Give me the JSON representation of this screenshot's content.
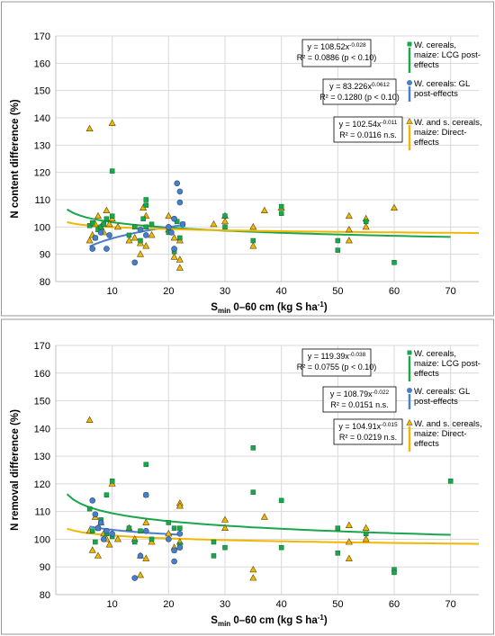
{
  "colors": {
    "lcg": "#1aa64b",
    "gl": "#4a7ec8",
    "direct": "#f2b705",
    "grid": "#d9d9d9",
    "frame": "#9a9a9a"
  },
  "chart_data": [
    {
      "type": "scatter",
      "ylabel": "N content difference (%)",
      "xlabel_main": "S",
      "xlabel_sub": "min",
      "xlabel_rest": " 0–60 cm (kg S ha",
      "xlabel_sup": "-1",
      "xlabel_close": ")",
      "xlim": [
        0,
        75
      ],
      "ylim": [
        80,
        170
      ],
      "xticks": [
        10,
        20,
        30,
        40,
        50,
        60,
        70
      ],
      "yticks": [
        80,
        90,
        100,
        110,
        120,
        130,
        140,
        150,
        160,
        170
      ],
      "grid": true,
      "series": [
        {
          "key": "lcg",
          "marker": "square",
          "legend": [
            "W. cereals,",
            "maize: LCG post-",
            "effects"
          ],
          "eq": [
            "y = 108.52x",
            "-0.028"
          ],
          "r2": "R² = 0.0886 (p < 0.10)",
          "fit": {
            "a": 108.52,
            "b": -0.028,
            "x0": 2,
            "x1": 70
          },
          "points": [
            [
              6,
              100.5
            ],
            [
              6.5,
              101.5
            ],
            [
              7,
              96
            ],
            [
              7.5,
              99
            ],
            [
              8,
              100
            ],
            [
              8.5,
              101
            ],
            [
              9,
              103
            ],
            [
              10,
              104
            ],
            [
              10,
              120.5
            ],
            [
              13,
              97
            ],
            [
              14,
              100
            ],
            [
              15,
              95
            ],
            [
              15.5,
              103
            ],
            [
              16,
              110
            ],
            [
              16,
              108
            ],
            [
              16,
              100
            ],
            [
              17,
              101
            ],
            [
              20,
              98
            ],
            [
              21,
              91
            ],
            [
              21.5,
              102
            ],
            [
              22,
              96
            ],
            [
              22.5,
              101
            ],
            [
              30,
              104
            ],
            [
              30,
              100
            ],
            [
              35,
              95
            ],
            [
              40,
              107.5
            ],
            [
              40,
              105
            ],
            [
              50,
              95
            ],
            [
              50,
              91.5
            ],
            [
              55,
              102
            ],
            [
              60,
              87
            ]
          ]
        },
        {
          "key": "gl",
          "marker": "circle",
          "legend": [
            "W. cereals: GL",
            "post-effects"
          ],
          "eq": [
            "y = 83.226x",
            "0.0612"
          ],
          "r2": "R² = 0.1280 (p < 0.10)",
          "fit": {
            "a": 83.226,
            "b": 0.0612,
            "x0": 6,
            "x1": 22
          },
          "points": [
            [
              6.5,
              92
            ],
            [
              7,
              96
            ],
            [
              8,
              98
            ],
            [
              9,
              92
            ],
            [
              9.5,
              97
            ],
            [
              14,
              87
            ],
            [
              15,
              99
            ],
            [
              16,
              97
            ],
            [
              20,
              100
            ],
            [
              20.5,
              98
            ],
            [
              21,
              92
            ],
            [
              21.5,
              116
            ],
            [
              22,
              113
            ],
            [
              22,
              109
            ],
            [
              21,
              103
            ],
            [
              22.5,
              101
            ]
          ]
        },
        {
          "key": "direct",
          "marker": "triangle",
          "legend": [
            "W. and s. cereals,",
            "maize: Direct-",
            "effects"
          ],
          "eq": [
            "y = 102.54x",
            "-0.011"
          ],
          "r2": "R² = 0.0116 n.s.",
          "fit": {
            "a": 102.54,
            "b": -0.011,
            "x0": 2,
            "x1": 75
          },
          "points": [
            [
              6,
              136
            ],
            [
              6,
              95
            ],
            [
              6.5,
              97
            ],
            [
              7,
              101
            ],
            [
              7.5,
              104
            ],
            [
              8,
              100
            ],
            [
              8.5,
              98
            ],
            [
              9,
              106
            ],
            [
              9.5,
              101
            ],
            [
              10,
              138
            ],
            [
              10,
              103
            ],
            [
              11,
              100
            ],
            [
              13,
              95
            ],
            [
              14,
              96
            ],
            [
              15,
              94
            ],
            [
              15,
              90
            ],
            [
              15.5,
              107
            ],
            [
              16,
              93
            ],
            [
              16,
              104
            ],
            [
              17,
              97
            ],
            [
              20,
              104
            ],
            [
              20,
              99
            ],
            [
              21,
              89
            ],
            [
              21,
              96
            ],
            [
              22,
              95
            ],
            [
              22,
              88
            ],
            [
              22,
              85
            ],
            [
              28,
              101
            ],
            [
              30,
              102
            ],
            [
              30,
              104
            ],
            [
              35,
              100
            ],
            [
              35,
              93
            ],
            [
              37,
              106
            ],
            [
              40,
              107
            ],
            [
              52,
              104
            ],
            [
              52,
              99
            ],
            [
              52,
              95
            ],
            [
              55,
              103
            ],
            [
              55,
              100
            ],
            [
              60,
              107
            ]
          ]
        }
      ]
    },
    {
      "type": "scatter",
      "ylabel": "N removal difference (%)",
      "xlabel_main": "S",
      "xlabel_sub": "min",
      "xlabel_rest": " 0–60 cm (kg S ha",
      "xlabel_sup": "-1",
      "xlabel_close": ")",
      "xlim": [
        0,
        75
      ],
      "ylim": [
        80,
        170
      ],
      "xticks": [
        10,
        20,
        30,
        40,
        50,
        60,
        70
      ],
      "yticks": [
        80,
        90,
        100,
        110,
        120,
        130,
        140,
        150,
        160,
        170
      ],
      "grid": true,
      "series": [
        {
          "key": "lcg",
          "marker": "square",
          "legend": [
            "W. cereals,",
            "maize: LCG post-",
            "effects"
          ],
          "eq": [
            "y = 119.39x",
            "-0.038"
          ],
          "r2": "R² = 0.0755 (p < 0.10)",
          "fit": {
            "a": 119.39,
            "b": -0.038,
            "x0": 2,
            "x1": 70
          },
          "points": [
            [
              6,
              111
            ],
            [
              6.5,
              103
            ],
            [
              7,
              99
            ],
            [
              7.5,
              104
            ],
            [
              8,
              107
            ],
            [
              9,
              116
            ],
            [
              9,
              102
            ],
            [
              10,
              121
            ],
            [
              10,
              101
            ],
            [
              13,
              104
            ],
            [
              14,
              99
            ],
            [
              15,
              103
            ],
            [
              16,
              127
            ],
            [
              16,
              116
            ],
            [
              17,
              100
            ],
            [
              20,
              106
            ],
            [
              21,
              96
            ],
            [
              21,
              104
            ],
            [
              22,
              104
            ],
            [
              22,
              98
            ],
            [
              28,
              99
            ],
            [
              28,
              94
            ],
            [
              30,
              97
            ],
            [
              35,
              133
            ],
            [
              35,
              117
            ],
            [
              40,
              114
            ],
            [
              40,
              97
            ],
            [
              50,
              104
            ],
            [
              50,
              95
            ],
            [
              55,
              102
            ],
            [
              60,
              89
            ],
            [
              60,
              88
            ],
            [
              70,
              121
            ]
          ]
        },
        {
          "key": "gl",
          "marker": "circle",
          "legend": [
            "W. cereals: GL",
            "post-effects"
          ],
          "eq": [
            "y = 108.79x",
            "-0.022"
          ],
          "r2": "R² = 0.0151 n.s.",
          "fit": {
            "a": 108.79,
            "b": -0.022,
            "x0": 6,
            "x1": 22
          },
          "points": [
            [
              6.5,
              114
            ],
            [
              7,
              109
            ],
            [
              7.5,
              104
            ],
            [
              8,
              106
            ],
            [
              8.5,
              100
            ],
            [
              9,
              103
            ],
            [
              10,
              102
            ],
            [
              14,
              86
            ],
            [
              15,
              94
            ],
            [
              16,
              116
            ],
            [
              16,
              103
            ],
            [
              20,
              100
            ],
            [
              21,
              96
            ],
            [
              21,
              92
            ],
            [
              22,
              102
            ],
            [
              22,
              97
            ]
          ]
        },
        {
          "key": "direct",
          "marker": "triangle",
          "legend": [
            "W. and s. cereals,",
            "maize: Direct-",
            "effects"
          ],
          "eq": [
            "y = 104.91x",
            "-0.015"
          ],
          "r2": "R² = 0.0219 n.s.",
          "fit": {
            "a": 104.91,
            "b": -0.015,
            "x0": 2,
            "x1": 75
          },
          "points": [
            [
              6,
              143
            ],
            [
              6,
              103
            ],
            [
              6.5,
              96
            ],
            [
              7,
              108
            ],
            [
              7.5,
              94
            ],
            [
              8,
              106
            ],
            [
              8.5,
              102
            ],
            [
              9,
              100
            ],
            [
              9.5,
              98
            ],
            [
              10,
              120
            ],
            [
              11,
              100
            ],
            [
              13,
              104
            ],
            [
              14,
              100
            ],
            [
              15,
              87
            ],
            [
              15,
              94
            ],
            [
              16,
              93
            ],
            [
              16,
              106
            ],
            [
              17,
              99
            ],
            [
              20,
              102
            ],
            [
              21,
              97
            ],
            [
              22,
              113
            ],
            [
              22,
              112
            ],
            [
              22,
              99
            ],
            [
              30,
              107
            ],
            [
              30,
              104
            ],
            [
              35,
              89
            ],
            [
              35,
              86
            ],
            [
              37,
              108
            ],
            [
              52,
              105
            ],
            [
              52,
              99
            ],
            [
              52,
              93
            ],
            [
              55,
              104
            ],
            [
              55,
              100
            ]
          ]
        }
      ]
    }
  ]
}
